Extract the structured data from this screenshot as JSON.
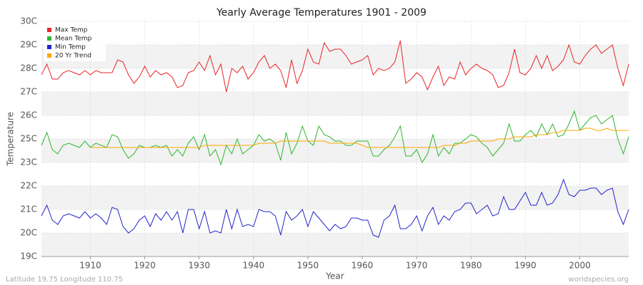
{
  "chart_data": {
    "type": "line",
    "title": "Yearly Average Temperatures 1901 - 2009",
    "x_label": "Year",
    "y_label": "Temperature",
    "annotations": [
      "Latitude 19.75 Longitude 110.75",
      "worldspecies.org"
    ],
    "legend": "top-left",
    "grid": true,
    "xlim": [
      1901,
      2009
    ],
    "ylim": [
      19,
      30
    ],
    "xticks": [
      1910,
      1920,
      1930,
      1940,
      1950,
      1960,
      1970,
      1980,
      1990,
      2000
    ],
    "yticks": [
      {
        "value": 19,
        "label": "19C"
      },
      {
        "value": 20.1,
        "label": "20C"
      },
      {
        "value": 21.2,
        "label": "21C"
      },
      {
        "value": 22.3,
        "label": "22C"
      },
      {
        "value": 23.4,
        "label": "23C"
      },
      {
        "value": 24.5,
        "label": "25C"
      },
      {
        "value": 25.6,
        "label": "26C"
      },
      {
        "value": 26.7,
        "label": "27C"
      },
      {
        "value": 27.8,
        "label": "28C"
      },
      {
        "value": 28.9,
        "label": "29C"
      },
      {
        "value": 30,
        "label": "30C"
      }
    ],
    "x": [
      1901,
      1902,
      1903,
      1904,
      1905,
      1906,
      1907,
      1908,
      1909,
      1910,
      1911,
      1912,
      1913,
      1914,
      1915,
      1916,
      1917,
      1918,
      1919,
      1920,
      1921,
      1922,
      1923,
      1924,
      1925,
      1926,
      1927,
      1928,
      1929,
      1930,
      1931,
      1932,
      1933,
      1934,
      1935,
      1936,
      1937,
      1938,
      1939,
      1940,
      1941,
      1942,
      1943,
      1944,
      1945,
      1946,
      1947,
      1948,
      1949,
      1950,
      1951,
      1952,
      1953,
      1954,
      1955,
      1956,
      1957,
      1958,
      1959,
      1960,
      1961,
      1962,
      1963,
      1964,
      1965,
      1966,
      1967,
      1968,
      1969,
      1970,
      1971,
      1972,
      1973,
      1974,
      1975,
      1976,
      1977,
      1978,
      1979,
      1980,
      1981,
      1982,
      1983,
      1984,
      1985,
      1986,
      1987,
      1988,
      1989,
      1990,
      1991,
      1992,
      1993,
      1994,
      1995,
      1996,
      1997,
      1998,
      1999,
      2000,
      2001,
      2002,
      2003,
      2004,
      2005,
      2006,
      2007,
      2008,
      2009
    ],
    "series": [
      {
        "name": "Max Temp",
        "color": "#e8262a",
        "values": [
          27.5,
          28.0,
          27.3,
          27.3,
          27.6,
          27.7,
          27.6,
          27.5,
          27.7,
          27.5,
          27.7,
          27.6,
          27.6,
          27.6,
          28.2,
          28.1,
          27.5,
          27.1,
          27.4,
          27.9,
          27.4,
          27.7,
          27.5,
          27.6,
          27.4,
          26.9,
          27.0,
          27.6,
          27.7,
          28.1,
          27.7,
          28.4,
          27.5,
          28.0,
          26.7,
          27.8,
          27.6,
          27.9,
          27.3,
          27.6,
          28.1,
          28.4,
          27.8,
          28.0,
          27.7,
          26.9,
          28.2,
          27.1,
          27.7,
          28.7,
          28.1,
          28.0,
          29.0,
          28.6,
          28.7,
          28.7,
          28.4,
          28.0,
          28.1,
          28.2,
          28.4,
          27.5,
          27.8,
          27.7,
          27.8,
          28.1,
          29.1,
          27.1,
          27.3,
          27.6,
          27.4,
          26.8,
          27.4,
          27.9,
          27.0,
          27.4,
          27.3,
          28.1,
          27.5,
          27.8,
          28.0,
          27.8,
          27.7,
          27.5,
          26.9,
          27.0,
          27.6,
          28.7,
          27.6,
          27.5,
          27.8,
          28.4,
          27.8,
          28.4,
          27.7,
          27.9,
          28.2,
          28.9,
          28.1,
          28.0,
          28.4,
          28.7,
          28.9,
          28.5,
          28.7,
          28.9,
          27.8,
          27.0,
          28.0
        ]
      },
      {
        "name": "Mean Temp",
        "color": "#2db82d",
        "values": [
          24.2,
          24.8,
          24.0,
          23.8,
          24.2,
          24.3,
          24.2,
          24.1,
          24.4,
          24.1,
          24.3,
          24.2,
          24.1,
          24.7,
          24.6,
          24.0,
          23.6,
          23.8,
          24.2,
          24.1,
          24.1,
          24.2,
          24.1,
          24.2,
          23.7,
          24.0,
          23.7,
          24.3,
          24.6,
          24.0,
          24.7,
          23.7,
          24.0,
          23.3,
          24.2,
          23.8,
          24.5,
          23.8,
          24.0,
          24.2,
          24.7,
          24.4,
          24.5,
          24.3,
          23.5,
          24.8,
          23.8,
          24.3,
          25.1,
          24.4,
          24.2,
          25.1,
          24.7,
          24.6,
          24.4,
          24.4,
          24.2,
          24.2,
          24.4,
          24.4,
          24.4,
          23.7,
          23.7,
          24.0,
          24.2,
          24.6,
          25.1,
          23.7,
          23.7,
          24.0,
          23.4,
          23.8,
          24.7,
          23.7,
          24.1,
          23.8,
          24.3,
          24.3,
          24.5,
          24.7,
          24.6,
          24.3,
          24.1,
          23.7,
          24.0,
          24.3,
          25.2,
          24.4,
          24.4,
          24.7,
          24.9,
          24.6,
          25.2,
          24.7,
          25.2,
          24.6,
          24.7,
          25.2,
          25.8,
          24.9,
          25.2,
          25.5,
          25.6,
          25.2,
          25.4,
          25.6,
          24.5,
          23.8,
          24.6
        ]
      },
      {
        "name": "Min Temp",
        "color": "#2424c8",
        "values": [
          20.9,
          21.4,
          20.7,
          20.5,
          20.9,
          21.0,
          20.9,
          20.8,
          21.1,
          20.8,
          21.0,
          20.8,
          20.5,
          21.3,
          21.2,
          20.4,
          20.1,
          20.3,
          20.7,
          20.9,
          20.4,
          21.0,
          20.7,
          21.1,
          20.7,
          21.1,
          20.1,
          21.2,
          21.2,
          20.3,
          21.1,
          20.1,
          20.2,
          20.1,
          21.2,
          20.3,
          21.2,
          20.4,
          20.5,
          20.4,
          21.2,
          21.1,
          21.1,
          20.9,
          20.0,
          21.1,
          20.7,
          20.9,
          21.2,
          20.4,
          21.1,
          20.8,
          20.5,
          20.2,
          20.5,
          20.3,
          20.4,
          20.8,
          20.8,
          20.7,
          20.7,
          20.0,
          19.9,
          20.7,
          20.9,
          21.4,
          20.3,
          20.3,
          20.5,
          20.9,
          20.2,
          20.9,
          21.3,
          20.5,
          20.9,
          20.7,
          21.1,
          21.2,
          21.5,
          21.5,
          21.0,
          21.2,
          21.4,
          20.9,
          21.0,
          21.8,
          21.2,
          21.2,
          21.6,
          22.0,
          21.4,
          21.4,
          22.0,
          21.4,
          21.5,
          21.9,
          22.6,
          21.9,
          21.8,
          22.1,
          22.1,
          22.2,
          22.2,
          21.9,
          22.1,
          22.2,
          21.1,
          20.5,
          21.2
        ]
      },
      {
        "name": "20 Yr Trend",
        "color": "#ffa500",
        "values": [
          null,
          null,
          null,
          null,
          null,
          null,
          null,
          null,
          null,
          24.1,
          24.1,
          24.1,
          24.1,
          24.1,
          24.1,
          24.1,
          24.1,
          24.1,
          24.1,
          24.1,
          24.1,
          24.1,
          24.1,
          24.1,
          24.1,
          24.1,
          24.1,
          24.1,
          24.1,
          24.1,
          24.2,
          24.2,
          24.2,
          24.2,
          24.2,
          24.2,
          24.2,
          24.2,
          24.2,
          24.2,
          24.3,
          24.3,
          24.3,
          24.3,
          24.4,
          24.4,
          24.4,
          24.4,
          24.4,
          24.4,
          24.4,
          24.4,
          24.4,
          24.3,
          24.3,
          24.3,
          24.3,
          24.3,
          24.3,
          24.2,
          24.1,
          24.1,
          24.1,
          24.1,
          24.1,
          24.1,
          24.1,
          24.1,
          24.1,
          24.1,
          24.1,
          24.1,
          24.1,
          24.1,
          24.2,
          24.2,
          24.2,
          24.3,
          24.3,
          24.4,
          24.4,
          24.4,
          24.4,
          24.4,
          24.5,
          24.5,
          24.5,
          24.6,
          24.6,
          24.6,
          24.6,
          24.7,
          24.7,
          24.7,
          24.8,
          24.8,
          24.9,
          24.9,
          24.9,
          24.9,
          25.0,
          25.0,
          24.9,
          24.9,
          25.0,
          24.9,
          24.9,
          24.9,
          24.9
        ]
      }
    ]
  }
}
